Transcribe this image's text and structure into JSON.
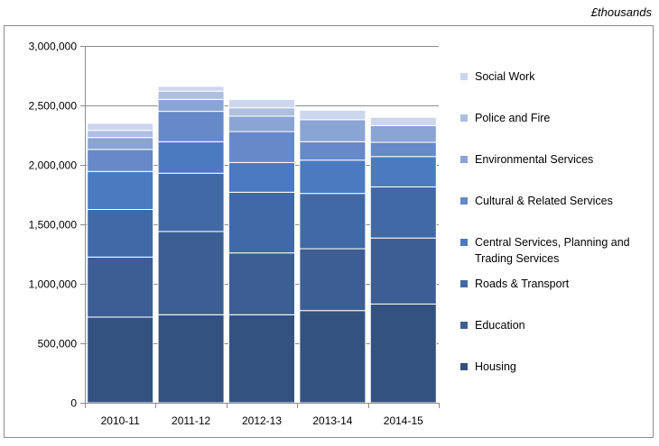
{
  "unit_label": "£thousands",
  "chart_data": {
    "type": "bar",
    "stacked": true,
    "categories": [
      "2010-11",
      "2011-12",
      "2012-13",
      "2013-14",
      "2014-15"
    ],
    "ylim": [
      0,
      3000000
    ],
    "yticks": [
      0,
      500000,
      1000000,
      1500000,
      2000000,
      2500000,
      3000000
    ],
    "ytick_labels": [
      "0",
      "500,000",
      "1,000,000",
      "1,500,000",
      "2,000,000",
      "2,500,000",
      "3,000,000"
    ],
    "grid": true,
    "legend_position": "right",
    "series": [
      {
        "name": "Housing",
        "color": "#34527f",
        "values": [
          720000,
          740000,
          740000,
          775000,
          830000
        ]
      },
      {
        "name": "Education",
        "color": "#3c5e93",
        "values": [
          505000,
          700000,
          520000,
          520000,
          555000
        ]
      },
      {
        "name": "Roads & Transport",
        "color": "#4169a6",
        "values": [
          400000,
          490000,
          510000,
          465000,
          430000
        ]
      },
      {
        "name": "Central Services, Planning and Trading Services",
        "color": "#4b7ac0",
        "values": [
          320000,
          265000,
          250000,
          280000,
          255000
        ]
      },
      {
        "name": "Cultural & Related Services",
        "color": "#6689c7",
        "values": [
          185000,
          255000,
          260000,
          155000,
          120000
        ]
      },
      {
        "name": "Environmental Services",
        "color": "#8aa4d3",
        "values": [
          100000,
          100000,
          130000,
          185000,
          140000
        ]
      },
      {
        "name": "Police and Fire",
        "color": "#aebfe0",
        "values": [
          60000,
          70000,
          70000,
          0,
          0
        ]
      },
      {
        "name": "Social Work",
        "color": "#ccd6ec",
        "values": [
          60000,
          40000,
          70000,
          80000,
          70000
        ]
      }
    ]
  }
}
